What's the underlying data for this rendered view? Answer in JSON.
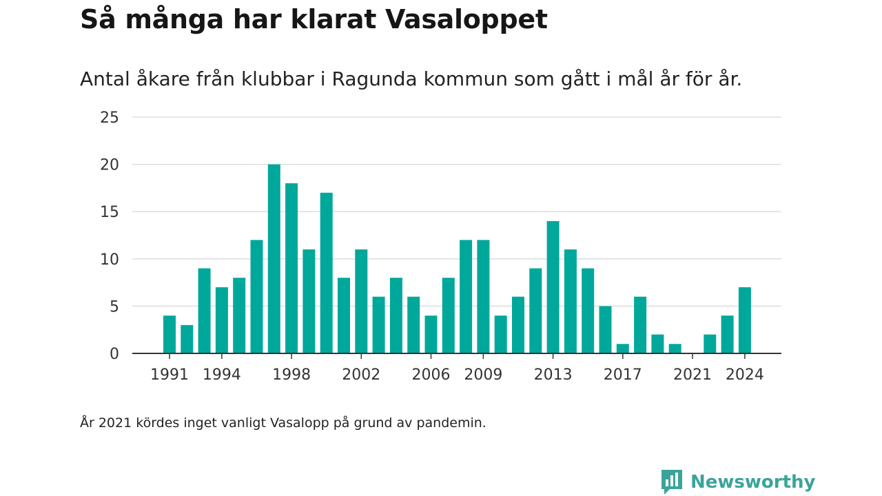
{
  "title": "Så många har klarat Vasaloppet",
  "subtitle": "Antal åkare från klubbar i Ragunda kommun som gått i mål år för år.",
  "footnote": "År 2021 kördes inget vanligt Vasalopp på grund av pandemin.",
  "brand": {
    "name": "Newsworthy",
    "icon": "newsworthy-logo-icon",
    "color": "#3aa49a"
  },
  "chart_data": {
    "type": "bar",
    "color": "#00a89b",
    "x": [
      1991,
      1992,
      1993,
      1994,
      1995,
      1996,
      1997,
      1998,
      1999,
      2000,
      2001,
      2002,
      2003,
      2004,
      2005,
      2006,
      2007,
      2008,
      2009,
      2010,
      2011,
      2012,
      2013,
      2014,
      2015,
      2016,
      2017,
      2018,
      2019,
      2020,
      2021,
      2022,
      2023,
      2024
    ],
    "values": [
      4,
      3,
      9,
      7,
      8,
      12,
      20,
      18,
      11,
      17,
      8,
      11,
      6,
      8,
      6,
      4,
      8,
      12,
      12,
      4,
      6,
      9,
      14,
      11,
      9,
      5,
      1,
      6,
      2,
      1,
      0,
      2,
      4,
      7
    ],
    "x_tick_labels": [
      "1991",
      "1994",
      "1998",
      "2002",
      "2006",
      "2009",
      "2013",
      "2017",
      "2021",
      "2024"
    ],
    "y_ticks": [
      0,
      5,
      10,
      15,
      20,
      25
    ],
    "ylim": [
      0,
      25
    ],
    "grid": true,
    "xlabel": "",
    "ylabel": ""
  }
}
